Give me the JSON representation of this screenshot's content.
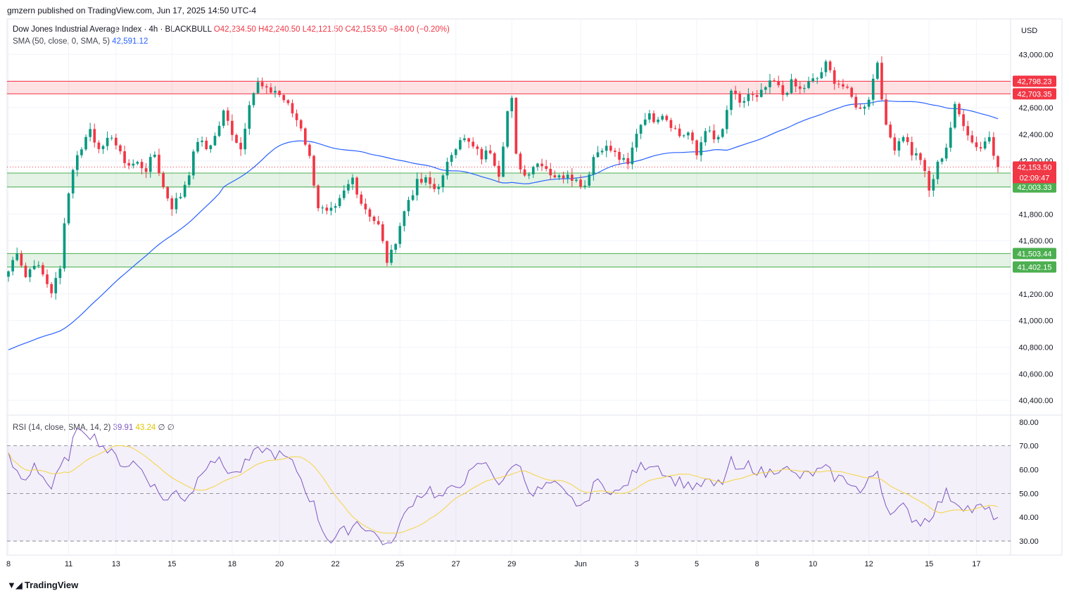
{
  "header": {
    "published_by": "gmzern published on TradingView.com, Jun 17, 2025 14:50 UTC-4"
  },
  "legend": {
    "symbol": "Dow Jones Industrial Average Index · 4h · BLACKBULL",
    "open": "O42,234.50",
    "high": "H42,240.50",
    "low": "L42,121.50",
    "close": "C42,153.50",
    "change": "−84.00 (−0.20%)",
    "sma_label": "SMA (50, close, 0, SMA, 5)",
    "sma_value": "42,591.12",
    "rsi_label": "RSI (14, close, SMA, 14, 2)",
    "rsi_value": "39.91",
    "rsi_ma_value": "43.24",
    "rsi_extra1": "∅",
    "rsi_extra2": "∅"
  },
  "currency_button": "USD",
  "footer": {
    "brand": "TradingView",
    "logo_icon": "tradingview-logo-icon"
  },
  "colors": {
    "up": "#089981",
    "down": "#f23645",
    "sma": "#2962ff",
    "rsi": "#7e57c2",
    "rsi_ma": "#f5d442",
    "resistance_zone": "#f23645",
    "support_zone": "#4caf50"
  },
  "chart_data": [
    {
      "type": "candlestick",
      "title": "Dow Jones Industrial Average Index · 4h · BLACKBULL",
      "ylim": [
        40300,
        43250
      ],
      "y_ticks": [
        "43,000.00",
        "42,800.00",
        "42,600.00",
        "42,400.00",
        "42,200.00",
        "42,000.00",
        "41,800.00",
        "41,600.00",
        "41,400.00",
        "41,200.00",
        "41,000.00",
        "40,800.00",
        "40,600.00",
        "40,400.00"
      ],
      "y_tick_values": [
        43000,
        42800,
        42600,
        42400,
        42200,
        42000,
        41800,
        41600,
        41400,
        41200,
        41000,
        40800,
        40600,
        40400
      ],
      "x_ticks": [
        "8",
        "11",
        "13",
        "15",
        "18",
        "20",
        "22",
        "25",
        "27",
        "29",
        "Jun",
        "3",
        "5",
        "8",
        "10",
        "12",
        "15",
        "17"
      ],
      "x_tick_index": [
        0,
        14,
        25,
        38,
        52,
        63,
        76,
        91,
        104,
        117,
        133,
        146,
        160,
        174,
        187,
        200,
        214,
        225
      ],
      "candle_count": 231,
      "current_price": "42,153.50",
      "countdown": "02:09:47",
      "price_value": 42153.5,
      "zones": [
        {
          "kind": "resistance",
          "top": 42798.23,
          "bottom": 42703.35,
          "top_label": "42,798.23",
          "bottom_label": "42,703.35"
        },
        {
          "kind": "support",
          "top": 42108.07,
          "bottom": 42003.33,
          "top_label": "42,108.07",
          "bottom_label": "42,003.33"
        },
        {
          "kind": "support",
          "top": 41503.44,
          "bottom": 41402.15,
          "top_label": "41,503.44",
          "bottom_label": "41,402.15"
        }
      ],
      "close_anchors": [
        [
          0,
          41370
        ],
        [
          2,
          41530
        ],
        [
          4,
          41330
        ],
        [
          6,
          41440
        ],
        [
          8,
          41340
        ],
        [
          10,
          41220
        ],
        [
          12,
          41380
        ],
        [
          13,
          41760
        ],
        [
          15,
          42150
        ],
        [
          17,
          42310
        ],
        [
          19,
          42440
        ],
        [
          20,
          42360
        ],
        [
          22,
          42280
        ],
        [
          24,
          42400
        ],
        [
          26,
          42240
        ],
        [
          28,
          42170
        ],
        [
          30,
          42180
        ],
        [
          32,
          42140
        ],
        [
          34,
          42250
        ],
        [
          36,
          42000
        ],
        [
          38,
          41860
        ],
        [
          40,
          41940
        ],
        [
          42,
          42120
        ],
        [
          44,
          42360
        ],
        [
          46,
          42290
        ],
        [
          48,
          42380
        ],
        [
          50,
          42560
        ],
        [
          52,
          42420
        ],
        [
          54,
          42290
        ],
        [
          56,
          42650
        ],
        [
          58,
          42780
        ],
        [
          60,
          42720
        ],
        [
          62,
          42730
        ],
        [
          64,
          42660
        ],
        [
          66,
          42560
        ],
        [
          68,
          42460
        ],
        [
          70,
          42220
        ],
        [
          72,
          41860
        ],
        [
          74,
          41800
        ],
        [
          76,
          41830
        ],
        [
          78,
          41960
        ],
        [
          80,
          42070
        ],
        [
          82,
          41890
        ],
        [
          84,
          41800
        ],
        [
          86,
          41710
        ],
        [
          88,
          41450
        ],
        [
          89,
          41500
        ],
        [
          91,
          41720
        ],
        [
          93,
          41910
        ],
        [
          95,
          42030
        ],
        [
          97,
          42050
        ],
        [
          99,
          41990
        ],
        [
          101,
          42070
        ],
        [
          103,
          42260
        ],
        [
          105,
          42380
        ],
        [
          107,
          42330
        ],
        [
          110,
          42230
        ],
        [
          112,
          42280
        ],
        [
          114,
          42110
        ],
        [
          116,
          42570
        ],
        [
          117,
          42650
        ],
        [
          118,
          42230
        ],
        [
          120,
          42090
        ],
        [
          122,
          42170
        ],
        [
          124,
          42190
        ],
        [
          126,
          42110
        ],
        [
          128,
          42070
        ],
        [
          130,
          42120
        ],
        [
          132,
          42050
        ],
        [
          134,
          42020
        ],
        [
          136,
          42230
        ],
        [
          138,
          42310
        ],
        [
          140,
          42280
        ],
        [
          142,
          42220
        ],
        [
          144,
          42160
        ],
        [
          146,
          42420
        ],
        [
          148,
          42540
        ],
        [
          150,
          42520
        ],
        [
          152,
          42560
        ],
        [
          154,
          42480
        ],
        [
          156,
          42390
        ],
        [
          158,
          42410
        ],
        [
          160,
          42240
        ],
        [
          162,
          42450
        ],
        [
          164,
          42350
        ],
        [
          166,
          42410
        ],
        [
          168,
          42730
        ],
        [
          170,
          42610
        ],
        [
          172,
          42700
        ],
        [
          174,
          42660
        ],
        [
          176,
          42750
        ],
        [
          178,
          42790
        ],
        [
          180,
          42700
        ],
        [
          182,
          42780
        ],
        [
          184,
          42730
        ],
        [
          186,
          42780
        ],
        [
          188,
          42820
        ],
        [
          190,
          42920
        ],
        [
          192,
          42810
        ],
        [
          194,
          42760
        ],
        [
          196,
          42670
        ],
        [
          198,
          42580
        ],
        [
          200,
          42680
        ],
        [
          202,
          42950
        ],
        [
          204,
          42440
        ],
        [
          206,
          42310
        ],
        [
          208,
          42400
        ],
        [
          210,
          42260
        ],
        [
          212,
          42220
        ],
        [
          214,
          41970
        ],
        [
          216,
          42170
        ],
        [
          218,
          42310
        ],
        [
          220,
          42600
        ],
        [
          222,
          42490
        ],
        [
          224,
          42340
        ],
        [
          226,
          42300
        ],
        [
          228,
          42390
        ],
        [
          230,
          42153
        ]
      ]
    },
    {
      "type": "line",
      "title": "RSI (14, close, SMA, 14, 2)",
      "ylim": [
        25,
        82
      ],
      "y_ticks": [
        "80.00",
        "70.00",
        "60.00",
        "50.00",
        "40.00",
        "30.00"
      ],
      "y_tick_values": [
        80,
        70,
        60,
        50,
        40,
        30
      ],
      "levels": [
        70,
        50,
        30
      ],
      "rsi_anchors": [
        [
          0,
          65
        ],
        [
          2,
          58
        ],
        [
          4,
          55
        ],
        [
          6,
          63
        ],
        [
          8,
          57
        ],
        [
          10,
          52
        ],
        [
          12,
          60
        ],
        [
          14,
          66
        ],
        [
          15,
          72
        ],
        [
          17,
          78
        ],
        [
          19,
          75
        ],
        [
          21,
          72
        ],
        [
          23,
          68
        ],
        [
          25,
          65
        ],
        [
          27,
          62
        ],
        [
          29,
          63
        ],
        [
          31,
          60
        ],
        [
          33,
          55
        ],
        [
          35,
          50
        ],
        [
          37,
          47
        ],
        [
          39,
          51
        ],
        [
          41,
          48
        ],
        [
          43,
          52
        ],
        [
          45,
          60
        ],
        [
          47,
          65
        ],
        [
          49,
          63
        ],
        [
          51,
          60
        ],
        [
          53,
          58
        ],
        [
          55,
          62
        ],
        [
          57,
          66
        ],
        [
          59,
          69
        ],
        [
          61,
          67
        ],
        [
          63,
          66
        ],
        [
          65,
          64
        ],
        [
          67,
          60
        ],
        [
          69,
          52
        ],
        [
          71,
          45
        ],
        [
          73,
          35
        ],
        [
          75,
          30
        ],
        [
          77,
          33
        ],
        [
          79,
          35
        ],
        [
          81,
          38
        ],
        [
          83,
          36
        ],
        [
          85,
          33
        ],
        [
          87,
          30
        ],
        [
          89,
          27
        ],
        [
          90,
          34
        ],
        [
          92,
          40
        ],
        [
          94,
          47
        ],
        [
          96,
          50
        ],
        [
          98,
          52
        ],
        [
          100,
          48
        ],
        [
          102,
          50
        ],
        [
          104,
          53
        ],
        [
          106,
          56
        ],
        [
          108,
          59
        ],
        [
          110,
          63
        ],
        [
          112,
          60
        ],
        [
          114,
          55
        ],
        [
          116,
          57
        ],
        [
          118,
          64
        ],
        [
          120,
          56
        ],
        [
          122,
          50
        ],
        [
          124,
          52
        ],
        [
          126,
          54
        ],
        [
          128,
          52
        ],
        [
          130,
          48
        ],
        [
          132,
          46
        ],
        [
          134,
          44
        ],
        [
          136,
          55
        ],
        [
          138,
          53
        ],
        [
          140,
          52
        ],
        [
          142,
          50
        ],
        [
          144,
          55
        ],
        [
          146,
          60
        ],
        [
          148,
          62
        ],
        [
          150,
          63
        ],
        [
          152,
          60
        ],
        [
          154,
          56
        ],
        [
          156,
          55
        ],
        [
          158,
          54
        ],
        [
          160,
          52
        ],
        [
          162,
          55
        ],
        [
          164,
          53
        ],
        [
          166,
          55
        ],
        [
          168,
          63
        ],
        [
          170,
          58
        ],
        [
          172,
          62
        ],
        [
          174,
          60
        ],
        [
          176,
          58
        ],
        [
          178,
          60
        ],
        [
          180,
          62
        ],
        [
          182,
          58
        ],
        [
          184,
          57
        ],
        [
          186,
          58
        ],
        [
          188,
          59
        ],
        [
          190,
          60
        ],
        [
          192,
          57
        ],
        [
          194,
          56
        ],
        [
          196,
          55
        ],
        [
          198,
          50
        ],
        [
          200,
          55
        ],
        [
          202,
          60
        ],
        [
          204,
          45
        ],
        [
          206,
          42
        ],
        [
          208,
          44
        ],
        [
          210,
          40
        ],
        [
          212,
          38
        ],
        [
          214,
          40
        ],
        [
          216,
          45
        ],
        [
          218,
          50
        ],
        [
          220,
          47
        ],
        [
          222,
          45
        ],
        [
          224,
          43
        ],
        [
          226,
          44
        ],
        [
          228,
          42
        ],
        [
          230,
          39.91
        ]
      ]
    }
  ]
}
